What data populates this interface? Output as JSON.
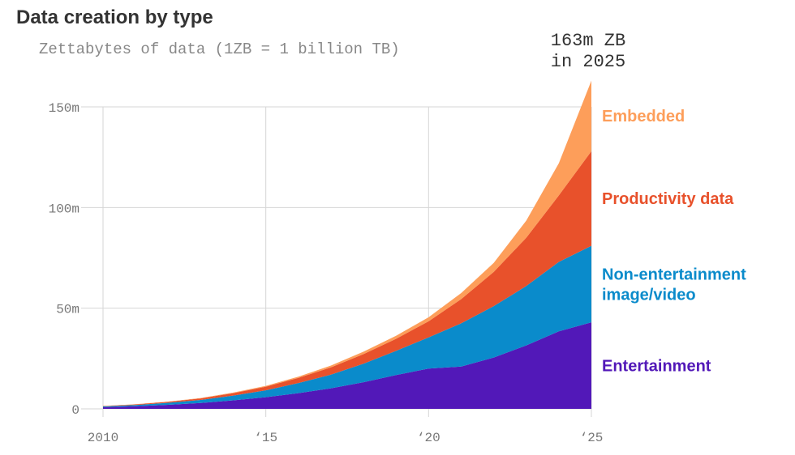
{
  "chart_data": {
    "type": "area",
    "stacked": true,
    "title": "Data creation by type",
    "subtitle": "Zettabytes of data (1ZB = 1 billion TB)",
    "annotation": [
      "163m ZB",
      "in 2025"
    ],
    "x": [
      2010,
      2011,
      2012,
      2013,
      2014,
      2015,
      2016,
      2017,
      2018,
      2019,
      2020,
      2021,
      2022,
      2023,
      2024,
      2025
    ],
    "x_tick_values": [
      2010,
      2015,
      2020,
      2025
    ],
    "x_tick_labels": [
      "2010",
      "‘15",
      "‘20",
      "‘25"
    ],
    "y_tick_values": [
      0,
      50,
      100,
      150
    ],
    "y_tick_labels": [
      "0",
      "50m",
      "100m",
      "150m"
    ],
    "xlim": [
      2010,
      2025
    ],
    "ylim": [
      0,
      150
    ],
    "grid": true,
    "legend": "direct labels at right",
    "series": [
      {
        "name": "Entertainment",
        "color": "#5218b8",
        "values": [
          0.8,
          1.3,
          2.0,
          2.9,
          4.2,
          5.8,
          7.8,
          10.2,
          13.2,
          16.8,
          20.0,
          21.0,
          25.5,
          31.5,
          38.5,
          43.0
        ]
      },
      {
        "name": "Non-entertainment image/video",
        "label_lines": [
          "Non-entertainment",
          "image/video"
        ],
        "color": "#0a8bcb",
        "values": [
          0.4,
          0.6,
          1.0,
          1.5,
          2.4,
          3.4,
          5.0,
          6.8,
          9.2,
          12.0,
          15.5,
          21.5,
          25.5,
          29.5,
          34.5,
          38.0
        ]
      },
      {
        "name": "Productivity data",
        "color": "#e8512b",
        "values": [
          0.2,
          0.3,
          0.5,
          0.8,
          1.2,
          1.8,
          2.6,
          3.6,
          4.8,
          6.0,
          8.0,
          12.0,
          17.0,
          24.0,
          33.0,
          47.0
        ]
      },
      {
        "name": "Embedded",
        "color": "#fd9e5a",
        "values": [
          0.0,
          0.1,
          0.1,
          0.2,
          0.3,
          0.4,
          0.6,
          0.9,
          1.2,
          1.5,
          2.0,
          3.0,
          4.5,
          8.5,
          16.0,
          35.0
        ]
      }
    ]
  }
}
